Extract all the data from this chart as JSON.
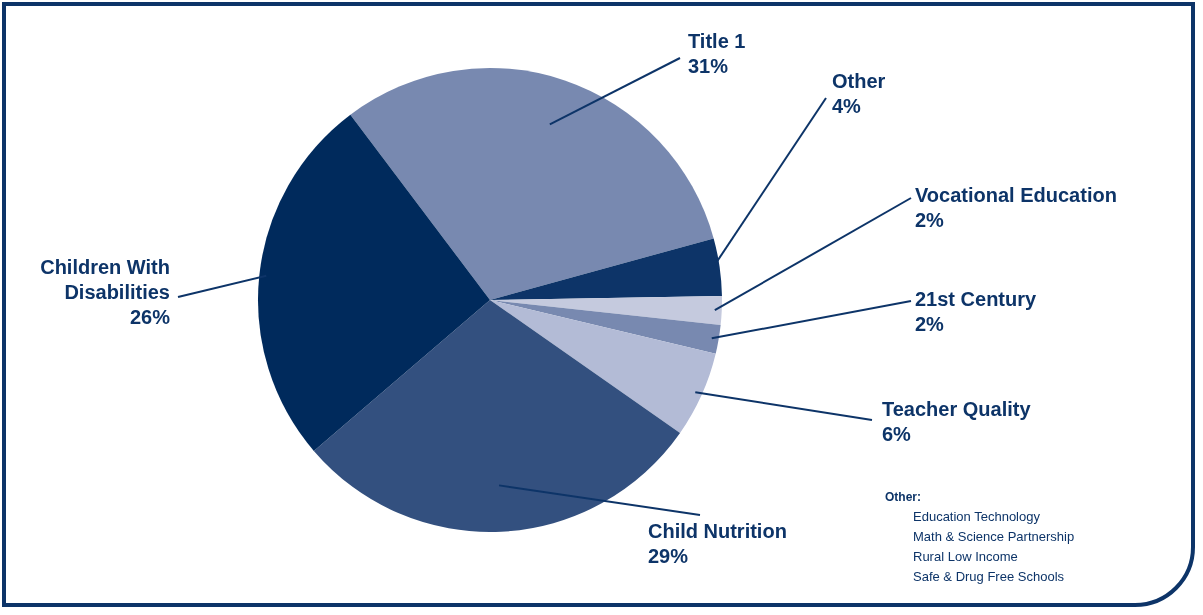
{
  "chart_data": {
    "type": "pie",
    "categories": [
      "Title 1",
      "Other",
      "Vocational Education",
      "21st Century",
      "Teacher Quality",
      "Child Nutrition",
      "Children With Disabilities"
    ],
    "values": [
      31,
      4,
      2,
      2,
      6,
      29,
      26
    ],
    "value_labels": [
      "31%",
      "4%",
      "2%",
      "2%",
      "6%",
      "29%",
      "26%"
    ],
    "colors": [
      "#7889b0",
      "#0d3468",
      "#c5cade",
      "#7889b0",
      "#b3bbd6",
      "#33507f",
      "#002a5c"
    ],
    "annotations": [
      "Other:",
      "Education Technology",
      "Math & Science Partnership",
      "Rural Low Income",
      "Safe & Drug Free Schools"
    ]
  }
}
